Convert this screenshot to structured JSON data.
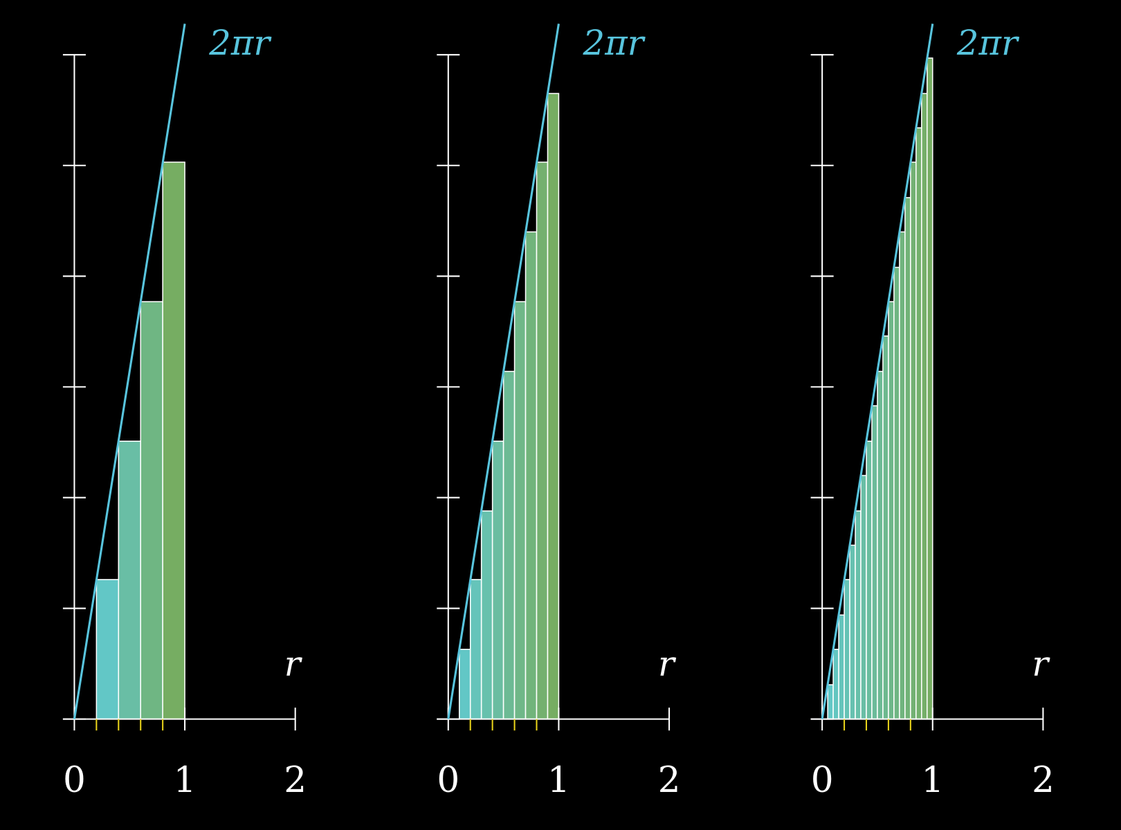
{
  "chart_data": [
    {
      "type": "histogram",
      "bins": [
        0.2,
        0.4,
        0.6,
        0.8,
        1.0
      ],
      "values": [
        1.26,
        2.51,
        3.77,
        5.03
      ],
      "colors": [
        "#62c7c6",
        "#76ad62"
      ],
      "series": [
        {
          "name": "2πr",
          "color": "#58c4dd",
          "x": [
            0,
            1
          ],
          "values": [
            0,
            6.28
          ]
        }
      ],
      "xlabel": "r",
      "xlim": [
        0,
        2
      ],
      "xticks": [
        0,
        1,
        2
      ],
      "xminorticks": [
        0.2,
        0.4,
        0.6,
        0.8
      ],
      "minor_color": "#e8d21a",
      "ylim": [
        0,
        6.28
      ],
      "yticks": [
        0,
        1,
        2,
        3,
        4,
        5,
        6
      ]
    },
    {
      "type": "histogram",
      "bins": [
        0.1,
        0.2,
        0.3,
        0.4,
        0.5,
        0.6,
        0.7,
        0.8,
        0.9,
        1.0
      ],
      "values": [
        0.63,
        1.26,
        1.88,
        2.51,
        3.14,
        3.77,
        4.4,
        5.03,
        5.65
      ],
      "colors": [
        "#62c7c6",
        "#76ad62"
      ],
      "series": [
        {
          "name": "2πr",
          "color": "#58c4dd",
          "x": [
            0,
            1
          ],
          "values": [
            0,
            6.28
          ]
        }
      ],
      "xlabel": "r",
      "xlim": [
        0,
        2
      ],
      "xticks": [
        0,
        1,
        2
      ],
      "xminorticks": [
        0.2,
        0.4,
        0.6,
        0.8
      ],
      "minor_color": "#e8d21a",
      "ylim": [
        0,
        6.28
      ],
      "yticks": [
        0,
        1,
        2,
        3,
        4,
        5,
        6
      ]
    },
    {
      "type": "histogram",
      "bins": [
        0.05,
        0.1,
        0.15,
        0.2,
        0.25,
        0.3,
        0.35,
        0.4,
        0.45,
        0.5,
        0.55,
        0.6,
        0.65,
        0.7,
        0.75,
        0.8,
        0.85,
        0.9,
        0.95,
        1.0
      ],
      "values": [
        0.31,
        0.63,
        0.94,
        1.26,
        1.57,
        1.88,
        2.2,
        2.51,
        2.83,
        3.14,
        3.46,
        3.77,
        4.08,
        4.4,
        4.71,
        5.03,
        5.34,
        5.65,
        5.97
      ],
      "colors": [
        "#62c7c6",
        "#76ad62"
      ],
      "series": [
        {
          "name": "2πr",
          "color": "#58c4dd",
          "x": [
            0,
            1
          ],
          "values": [
            0,
            6.28
          ]
        }
      ],
      "xlabel": "r",
      "xlim": [
        0,
        2
      ],
      "xticks": [
        0,
        1,
        2
      ],
      "xminorticks": [
        0.2,
        0.4,
        0.6,
        0.8
      ],
      "minor_color": "#e8d21a",
      "ylim": [
        0,
        6.28
      ],
      "yticks": [
        0,
        1,
        2,
        3,
        4,
        5,
        6
      ]
    }
  ]
}
